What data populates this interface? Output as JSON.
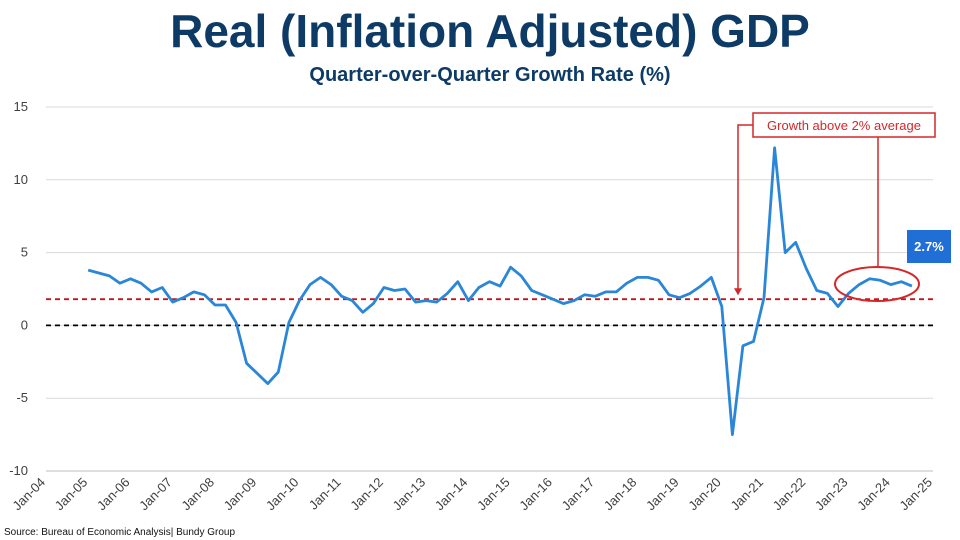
{
  "chart_data": {
    "type": "line",
    "title": "Real (Inflation Adjusted) GDP",
    "subtitle": "Quarter-over-Quarter Growth Rate (%)",
    "source": "Source: Bureau of Economic Analysis| Bundy Group",
    "ylim": [
      -10,
      15
    ],
    "yticks": [
      "15",
      "10",
      "5",
      "0",
      "-5",
      "-10"
    ],
    "ytick_values": [
      15,
      10,
      5,
      0,
      -5,
      -10
    ],
    "xticks": [
      "Jan-04",
      "Jan-05",
      "Jan-06",
      "Jan-07",
      "Jan-08",
      "Jan-09",
      "Jan-10",
      "Jan-11",
      "Jan-12",
      "Jan-13",
      "Jan-14",
      "Jan-15",
      "Jan-16",
      "Jan-17",
      "Jan-18",
      "Jan-19",
      "Jan-20",
      "Jan-21",
      "Jan-22",
      "Jan-23",
      "Jan-24",
      "Jan-25"
    ],
    "xlim": [
      2004.0,
      2025.0
    ],
    "grid": true,
    "colors": {
      "line": "#2a86d8",
      "average": "#c0171f",
      "zero": "#000000",
      "annotation": "#d62728",
      "callout": "#1f6fd6"
    },
    "series": [
      {
        "values": [
          [
            2005.0,
            3.8
          ],
          [
            2005.25,
            3.6
          ],
          [
            2005.5,
            3.4
          ],
          [
            2005.75,
            2.9
          ],
          [
            2006.0,
            3.2
          ],
          [
            2006.25,
            2.9
          ],
          [
            2006.5,
            2.3
          ],
          [
            2006.75,
            2.6
          ],
          [
            2007.0,
            1.6
          ],
          [
            2007.25,
            1.9
          ],
          [
            2007.5,
            2.3
          ],
          [
            2007.75,
            2.1
          ],
          [
            2008.0,
            1.4
          ],
          [
            2008.25,
            1.4
          ],
          [
            2008.5,
            0.2
          ],
          [
            2008.75,
            -2.6
          ],
          [
            2009.0,
            -3.3
          ],
          [
            2009.25,
            -4.0
          ],
          [
            2009.5,
            -3.2
          ],
          [
            2009.75,
            0.2
          ],
          [
            2010.0,
            1.7
          ],
          [
            2010.25,
            2.8
          ],
          [
            2010.5,
            3.3
          ],
          [
            2010.75,
            2.8
          ],
          [
            2011.0,
            2.0
          ],
          [
            2011.25,
            1.7
          ],
          [
            2011.5,
            0.9
          ],
          [
            2011.75,
            1.5
          ],
          [
            2012.0,
            2.6
          ],
          [
            2012.25,
            2.4
          ],
          [
            2012.5,
            2.5
          ],
          [
            2012.75,
            1.6
          ],
          [
            2013.0,
            1.7
          ],
          [
            2013.25,
            1.6
          ],
          [
            2013.5,
            2.2
          ],
          [
            2013.75,
            3.0
          ],
          [
            2014.0,
            1.7
          ],
          [
            2014.25,
            2.6
          ],
          [
            2014.5,
            3.0
          ],
          [
            2014.75,
            2.7
          ],
          [
            2015.0,
            4.0
          ],
          [
            2015.25,
            3.4
          ],
          [
            2015.5,
            2.4
          ],
          [
            2015.75,
            2.1
          ],
          [
            2016.0,
            1.8
          ],
          [
            2016.25,
            1.5
          ],
          [
            2016.5,
            1.7
          ],
          [
            2016.75,
            2.1
          ],
          [
            2017.0,
            2.0
          ],
          [
            2017.25,
            2.3
          ],
          [
            2017.5,
            2.3
          ],
          [
            2017.75,
            2.9
          ],
          [
            2018.0,
            3.3
          ],
          [
            2018.25,
            3.3
          ],
          [
            2018.5,
            3.1
          ],
          [
            2018.75,
            2.1
          ],
          [
            2019.0,
            1.9
          ],
          [
            2019.25,
            2.2
          ],
          [
            2019.5,
            2.7
          ],
          [
            2019.75,
            3.3
          ],
          [
            2020.0,
            1.3
          ],
          [
            2020.25,
            -7.5
          ],
          [
            2020.5,
            -1.4
          ],
          [
            2020.75,
            -1.1
          ],
          [
            2021.0,
            1.9
          ],
          [
            2021.25,
            12.2
          ],
          [
            2021.5,
            5.0
          ],
          [
            2021.75,
            5.7
          ],
          [
            2022.0,
            3.9
          ],
          [
            2022.25,
            2.4
          ],
          [
            2022.5,
            2.2
          ],
          [
            2022.75,
            1.3
          ],
          [
            2023.0,
            2.2
          ],
          [
            2023.25,
            2.8
          ],
          [
            2023.5,
            3.2
          ],
          [
            2023.75,
            3.1
          ],
          [
            2024.0,
            2.8
          ],
          [
            2024.25,
            3.0
          ],
          [
            2024.5,
            2.7
          ]
        ]
      }
    ],
    "reference_lines": [
      {
        "y": 1.8,
        "style": "dashed",
        "color": "#c0171f"
      },
      {
        "y": 0,
        "style": "dashed",
        "color": "#000000"
      }
    ],
    "annotations": {
      "average_label": "Growth above 2% average",
      "callout_value": "2.7%"
    }
  }
}
